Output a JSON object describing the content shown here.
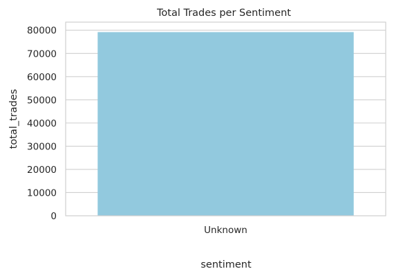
{
  "chart_data": {
    "type": "bar",
    "title": "Total Trades per Sentiment",
    "xlabel": "sentiment",
    "ylabel": "total_trades",
    "categories": [
      "Unknown"
    ],
    "values": [
      79200
    ],
    "ylim": [
      0,
      83500
    ],
    "yticks": [
      0,
      10000,
      20000,
      30000,
      40000,
      50000,
      60000,
      70000,
      80000
    ],
    "ytick_labels": [
      "0",
      "10000",
      "20000",
      "30000",
      "40000",
      "50000",
      "60000",
      "70000",
      "80000"
    ],
    "grid": true,
    "bar_color": "#92c9de"
  }
}
